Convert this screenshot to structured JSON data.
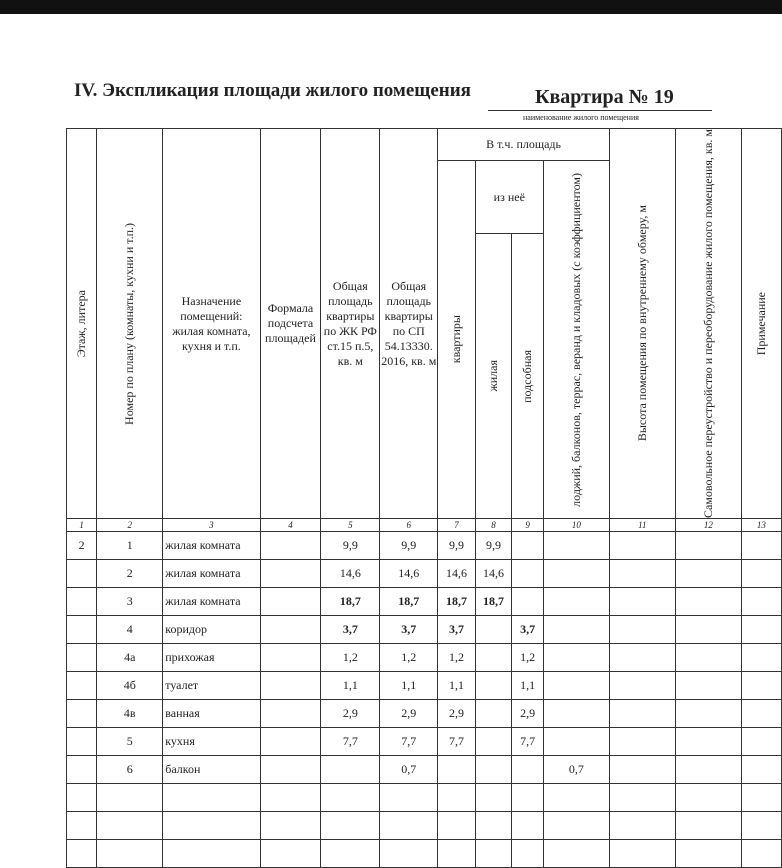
{
  "title": "IV. Экспликация площади жилого помещения",
  "apartment": {
    "name": "Квартира № 19",
    "caption": "наименование жилого помещения"
  },
  "headers": {
    "c1": "Этаж, литера",
    "c2": "Номер по плану (комнаты, кухни и т.п.)",
    "c3": "Назначение помещений: жилая комната, кухня и т.п.",
    "c4": "Формала подсчета площадей",
    "c5": "Общая площадь квартиры по ЖК РФ ст.15 п.5, кв. м",
    "c6": "Общая площадь квартиры по СП 54.13330. 2016, кв. м",
    "group": "В т.ч. площадь",
    "c7": "квартиры",
    "subgroup": "из неё",
    "c8": "жилая",
    "c9": "подсобная",
    "c10": "лоджий, балконов, террас, веранд и кладовых (с коэффициентом)",
    "c11": "Высота помещения по внутреннему обмеру, м",
    "c12": "Самовольное переустройство и переоборудование жилого помещения, кв. м",
    "c13": "Примечание"
  },
  "column_numbers": [
    "1",
    "2",
    "3",
    "4",
    "5",
    "6",
    "7",
    "8",
    "9",
    "10",
    "11",
    "12",
    "13"
  ],
  "rows": [
    [
      "2",
      "1",
      "жилая комната",
      "",
      "9,9",
      "9,9",
      "9,9",
      "9,9",
      "",
      "",
      "",
      "",
      ""
    ],
    [
      "",
      "2",
      "жилая комната",
      "",
      "14,6",
      "14,6",
      "14,6",
      "14,6",
      "",
      "",
      "",
      "",
      ""
    ],
    [
      "",
      "3",
      "жилая комната",
      "",
      "18,7",
      "18,7",
      "18,7",
      "18,7",
      "",
      "",
      "",
      "",
      ""
    ],
    [
      "",
      "4",
      "коридор",
      "",
      "3,7",
      "3,7",
      "3,7",
      "",
      "3,7",
      "",
      "",
      "",
      ""
    ],
    [
      "",
      "4а",
      "прихожая",
      "",
      "1,2",
      "1,2",
      "1,2",
      "",
      "1,2",
      "",
      "",
      "",
      ""
    ],
    [
      "",
      "4б",
      "туалет",
      "",
      "1,1",
      "1,1",
      "1,1",
      "",
      "1,1",
      "",
      "",
      "",
      ""
    ],
    [
      "",
      "4в",
      "ванная",
      "",
      "2,9",
      "2,9",
      "2,9",
      "",
      "2,9",
      "",
      "",
      "",
      ""
    ],
    [
      "",
      "5",
      "кухня",
      "",
      "7,7",
      "7,7",
      "7,7",
      "",
      "7,7",
      "",
      "",
      "",
      ""
    ],
    [
      "",
      "6",
      "балкон",
      "",
      "",
      "0,7",
      "",
      "",
      "",
      "0,7",
      "",
      "",
      ""
    ],
    [
      "",
      "",
      "",
      "",
      "",
      "",
      "",
      "",
      "",
      "",
      "",
      "",
      ""
    ],
    [
      "",
      "",
      "",
      "",
      "",
      "",
      "",
      "",
      "",
      "",
      "",
      "",
      ""
    ],
    [
      "",
      "",
      "",
      "",
      "",
      "",
      "",
      "",
      "",
      "",
      "",
      "",
      ""
    ]
  ],
  "bold_rows": [
    2,
    3
  ]
}
